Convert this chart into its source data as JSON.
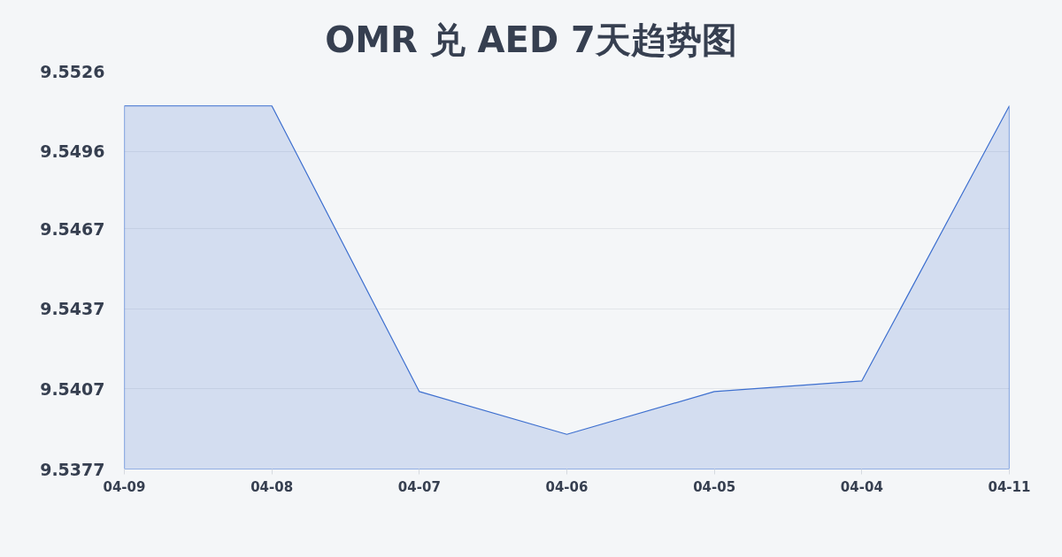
{
  "chart_data": {
    "type": "area",
    "title": "OMR 兑 AED 7天趋势图",
    "categories": [
      "04-09",
      "04-08",
      "04-07",
      "04-06",
      "04-05",
      "04-04",
      "04-11"
    ],
    "series": [
      {
        "color": "#3d6fcf",
        "values": [
          9.5513,
          9.5513,
          9.5406,
          9.539,
          9.5406,
          9.541,
          9.5513
        ]
      }
    ],
    "ylim": [
      9.5377,
      9.5526
    ],
    "yticks": [
      9.5377,
      9.5407,
      9.5437,
      9.5467,
      9.5496,
      9.5526
    ],
    "grid": "y",
    "marker": "none",
    "line_style": "solid"
  }
}
